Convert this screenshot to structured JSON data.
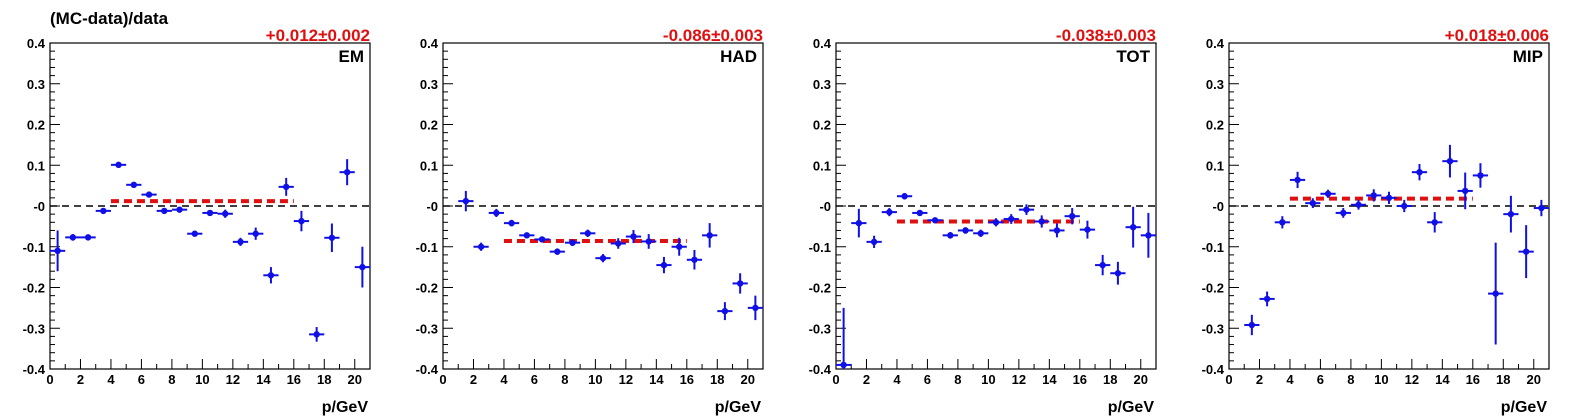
{
  "figure": {
    "ylabel": "(MC-data)/data"
  },
  "colors": {
    "points": "#1010e6",
    "fit": "#e01010",
    "zero_line": "#000000"
  },
  "chart_data": [
    {
      "type": "scatter",
      "label": "EM",
      "fit_text": "+0.012±0.002",
      "fit": {
        "value": 0.012,
        "x_range": [
          4,
          16
        ]
      },
      "xlabel": "p/GeV",
      "ylabel": "(MC-data)/data",
      "xlim": [
        0,
        21
      ],
      "ylim": [
        -0.4,
        0.4
      ],
      "xticks": [
        0,
        2,
        4,
        6,
        8,
        10,
        12,
        14,
        16,
        18,
        20
      ],
      "yticks": [
        -0.4,
        -0.3,
        -0.2,
        -0.1,
        0,
        0.1,
        0.2,
        0.3,
        0.4
      ],
      "xtick_labels": [
        "0",
        "2",
        "4",
        "6",
        "8",
        "10",
        "12",
        "14",
        "16",
        "18",
        "20"
      ],
      "ytick_labels": [
        "-0.4",
        "-0.3",
        "-0.2",
        "-0.1",
        "-0",
        "0.1",
        "0.2",
        "0.3",
        "0.4"
      ],
      "points": [
        {
          "x": 0.5,
          "y": -0.11,
          "err": 0.05
        },
        {
          "x": 1.5,
          "y": -0.077,
          "err": 0.008
        },
        {
          "x": 2.5,
          "y": -0.077,
          "err": 0.006
        },
        {
          "x": 3.5,
          "y": -0.012,
          "err": 0.006
        },
        {
          "x": 4.5,
          "y": 0.101,
          "err": 0.005
        },
        {
          "x": 5.5,
          "y": 0.052,
          "err": 0.005
        },
        {
          "x": 6.5,
          "y": 0.028,
          "err": 0.006
        },
        {
          "x": 7.5,
          "y": -0.012,
          "err": 0.006
        },
        {
          "x": 8.5,
          "y": -0.009,
          "err": 0.006
        },
        {
          "x": 9.5,
          "y": -0.068,
          "err": 0.005
        },
        {
          "x": 10.5,
          "y": -0.017,
          "err": 0.007
        },
        {
          "x": 11.5,
          "y": -0.019,
          "err": 0.01
        },
        {
          "x": 12.5,
          "y": -0.088,
          "err": 0.01
        },
        {
          "x": 13.5,
          "y": -0.068,
          "err": 0.015
        },
        {
          "x": 14.5,
          "y": -0.17,
          "err": 0.02
        },
        {
          "x": 15.5,
          "y": 0.047,
          "err": 0.022
        },
        {
          "x": 16.5,
          "y": -0.037,
          "err": 0.025
        },
        {
          "x": 17.5,
          "y": -0.315,
          "err": 0.018
        },
        {
          "x": 18.5,
          "y": -0.078,
          "err": 0.035
        },
        {
          "x": 19.5,
          "y": 0.083,
          "err": 0.032
        },
        {
          "x": 20.5,
          "y": -0.15,
          "err": 0.05
        }
      ]
    },
    {
      "type": "scatter",
      "label": "HAD",
      "fit_text": "-0.086±0.003",
      "fit": {
        "value": -0.086,
        "x_range": [
          4,
          16
        ]
      },
      "xlabel": "p/GeV",
      "ylabel": "",
      "xlim": [
        0,
        21
      ],
      "ylim": [
        -0.4,
        0.4
      ],
      "xticks": [
        0,
        2,
        4,
        6,
        8,
        10,
        12,
        14,
        16,
        18,
        20
      ],
      "yticks": [
        -0.4,
        -0.3,
        -0.2,
        -0.1,
        0,
        0.1,
        0.2,
        0.3,
        0.4
      ],
      "xtick_labels": [
        "0",
        "2",
        "4",
        "6",
        "8",
        "10",
        "12",
        "14",
        "16",
        "18",
        "20"
      ],
      "ytick_labels": [
        "-0.4",
        "-0.3",
        "-0.2",
        "-0.1",
        "-0",
        "0.1",
        "0.2",
        "0.3",
        "0.4"
      ],
      "points": [
        {
          "x": 1.5,
          "y": 0.012,
          "err": 0.025
        },
        {
          "x": 2.5,
          "y": -0.1,
          "err": 0.01
        },
        {
          "x": 3.5,
          "y": -0.017,
          "err": 0.01
        },
        {
          "x": 4.5,
          "y": -0.042,
          "err": 0.008
        },
        {
          "x": 5.5,
          "y": -0.072,
          "err": 0.007
        },
        {
          "x": 6.5,
          "y": -0.082,
          "err": 0.007
        },
        {
          "x": 7.5,
          "y": -0.112,
          "err": 0.008
        },
        {
          "x": 8.5,
          "y": -0.09,
          "err": 0.008
        },
        {
          "x": 9.5,
          "y": -0.067,
          "err": 0.009
        },
        {
          "x": 10.5,
          "y": -0.128,
          "err": 0.01
        },
        {
          "x": 11.5,
          "y": -0.092,
          "err": 0.013
        },
        {
          "x": 12.5,
          "y": -0.075,
          "err": 0.016
        },
        {
          "x": 13.5,
          "y": -0.087,
          "err": 0.018
        },
        {
          "x": 14.5,
          "y": -0.145,
          "err": 0.02
        },
        {
          "x": 15.5,
          "y": -0.1,
          "err": 0.022
        },
        {
          "x": 16.5,
          "y": -0.132,
          "err": 0.024
        },
        {
          "x": 17.5,
          "y": -0.072,
          "err": 0.03
        },
        {
          "x": 18.5,
          "y": -0.258,
          "err": 0.022
        },
        {
          "x": 19.5,
          "y": -0.19,
          "err": 0.025
        },
        {
          "x": 20.5,
          "y": -0.25,
          "err": 0.03
        }
      ]
    },
    {
      "type": "scatter",
      "label": "TOT",
      "fit_text": "-0.038±0.003",
      "fit": {
        "value": -0.038,
        "x_range": [
          4,
          16
        ]
      },
      "xlabel": "p/GeV",
      "ylabel": "",
      "xlim": [
        0,
        21
      ],
      "ylim": [
        -0.4,
        0.4
      ],
      "xticks": [
        0,
        2,
        4,
        6,
        8,
        10,
        12,
        14,
        16,
        18,
        20
      ],
      "yticks": [
        -0.4,
        -0.3,
        -0.2,
        -0.1,
        0,
        0.1,
        0.2,
        0.3,
        0.4
      ],
      "xtick_labels": [
        "0",
        "2",
        "4",
        "6",
        "8",
        "10",
        "12",
        "14",
        "16",
        "18",
        "20"
      ],
      "ytick_labels": [
        "-0.4",
        "-0.3",
        "-0.2",
        "-0.1",
        "-0",
        "0.1",
        "0.2",
        "0.3",
        "0.4"
      ],
      "points": [
        {
          "x": 0.5,
          "y": -0.39,
          "err": 0.14
        },
        {
          "x": 1.5,
          "y": -0.042,
          "err": 0.035
        },
        {
          "x": 2.5,
          "y": -0.088,
          "err": 0.015
        },
        {
          "x": 3.5,
          "y": -0.015,
          "err": 0.01
        },
        {
          "x": 4.5,
          "y": 0.024,
          "err": 0.008
        },
        {
          "x": 5.5,
          "y": -0.017,
          "err": 0.007
        },
        {
          "x": 6.5,
          "y": -0.035,
          "err": 0.007
        },
        {
          "x": 7.5,
          "y": -0.072,
          "err": 0.008
        },
        {
          "x": 8.5,
          "y": -0.06,
          "err": 0.008
        },
        {
          "x": 9.5,
          "y": -0.067,
          "err": 0.009
        },
        {
          "x": 10.5,
          "y": -0.04,
          "err": 0.01
        },
        {
          "x": 11.5,
          "y": -0.032,
          "err": 0.012
        },
        {
          "x": 12.5,
          "y": -0.009,
          "err": 0.013
        },
        {
          "x": 13.5,
          "y": -0.038,
          "err": 0.015
        },
        {
          "x": 14.5,
          "y": -0.06,
          "err": 0.017
        },
        {
          "x": 15.5,
          "y": -0.025,
          "err": 0.02
        },
        {
          "x": 16.5,
          "y": -0.058,
          "err": 0.022
        },
        {
          "x": 17.5,
          "y": -0.145,
          "err": 0.025
        },
        {
          "x": 18.5,
          "y": -0.165,
          "err": 0.028
        },
        {
          "x": 19.5,
          "y": -0.052,
          "err": 0.05
        },
        {
          "x": 20.5,
          "y": -0.072,
          "err": 0.055
        }
      ]
    },
    {
      "type": "scatter",
      "label": "MIP",
      "fit_text": "+0.018±0.006",
      "fit": {
        "value": 0.018,
        "x_range": [
          4,
          16
        ]
      },
      "xlabel": "p/GeV",
      "ylabel": "",
      "xlim": [
        0,
        21
      ],
      "ylim": [
        -0.4,
        0.4
      ],
      "xticks": [
        0,
        2,
        4,
        6,
        8,
        10,
        12,
        14,
        16,
        18,
        20
      ],
      "yticks": [
        -0.4,
        -0.3,
        -0.2,
        -0.1,
        0,
        0.1,
        0.2,
        0.3,
        0.4
      ],
      "xtick_labels": [
        "0",
        "2",
        "4",
        "6",
        "8",
        "10",
        "12",
        "14",
        "16",
        "18",
        "20"
      ],
      "ytick_labels": [
        "-0.4",
        "-0.3",
        "-0.2",
        "-0.1",
        "-0",
        "0.1",
        "0.2",
        "0.3",
        "0.4"
      ],
      "points": [
        {
          "x": 1.5,
          "y": -0.292,
          "err": 0.025
        },
        {
          "x": 2.5,
          "y": -0.228,
          "err": 0.018
        },
        {
          "x": 3.5,
          "y": -0.04,
          "err": 0.015
        },
        {
          "x": 4.5,
          "y": 0.064,
          "err": 0.02
        },
        {
          "x": 5.5,
          "y": 0.007,
          "err": 0.012
        },
        {
          "x": 6.5,
          "y": 0.03,
          "err": 0.01
        },
        {
          "x": 7.5,
          "y": -0.017,
          "err": 0.012
        },
        {
          "x": 8.5,
          "y": 0.003,
          "err": 0.012
        },
        {
          "x": 9.5,
          "y": 0.026,
          "err": 0.015
        },
        {
          "x": 10.5,
          "y": 0.02,
          "err": 0.015
        },
        {
          "x": 11.5,
          "y": 0.0,
          "err": 0.015
        },
        {
          "x": 12.5,
          "y": 0.083,
          "err": 0.02
        },
        {
          "x": 13.5,
          "y": -0.04,
          "err": 0.025
        },
        {
          "x": 14.5,
          "y": 0.11,
          "err": 0.04
        },
        {
          "x": 15.5,
          "y": 0.037,
          "err": 0.045
        },
        {
          "x": 16.5,
          "y": 0.075,
          "err": 0.03
        },
        {
          "x": 17.5,
          "y": -0.215,
          "err": 0.125
        },
        {
          "x": 18.5,
          "y": -0.02,
          "err": 0.045
        },
        {
          "x": 19.5,
          "y": -0.112,
          "err": 0.065
        },
        {
          "x": 20.5,
          "y": -0.005,
          "err": 0.02
        }
      ]
    }
  ]
}
